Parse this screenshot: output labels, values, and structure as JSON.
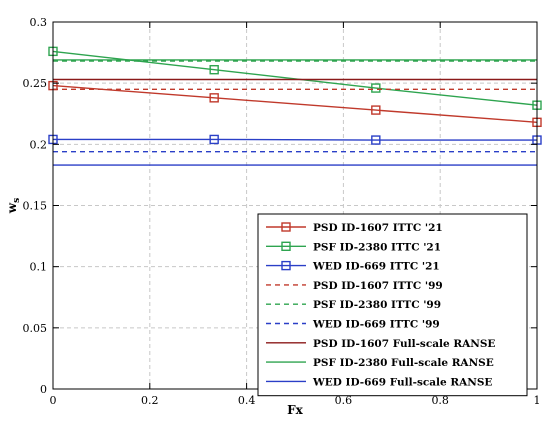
{
  "chart_data": {
    "type": "line",
    "title": "",
    "xlabel": "Fx",
    "ylabel": "w",
    "ylabel_sub": "s",
    "xlim": [
      0,
      1
    ],
    "ylim": [
      0,
      0.3
    ],
    "xticks": [
      "0",
      "0.2",
      "0.4",
      "0.6",
      "0.8",
      "1"
    ],
    "yticks": [
      "0",
      "0.05",
      "0.1",
      "0.15",
      "0.2",
      "0.25",
      "0.3"
    ],
    "grid": true,
    "legend_position": "bottom-right",
    "series": [
      {
        "name": "PSD ID-1607 ITTC '21",
        "color": "#c0392b",
        "dash": "solid",
        "marker": "square",
        "x": [
          0,
          0.333,
          0.667,
          1
        ],
        "y": [
          0.248,
          0.238,
          0.228,
          0.218
        ]
      },
      {
        "name": "PSF ID-2380 ITTC '21",
        "color": "#2ea44f",
        "dash": "solid",
        "marker": "square",
        "x": [
          0,
          0.333,
          0.667,
          1
        ],
        "y": [
          0.276,
          0.261,
          0.246,
          0.232
        ]
      },
      {
        "name": "WED ID-669 ITTC '21",
        "color": "#2a3fc7",
        "dash": "solid",
        "marker": "square",
        "x": [
          0,
          0.333,
          0.667,
          1
        ],
        "y": [
          0.204,
          0.204,
          0.2035,
          0.2035
        ]
      },
      {
        "name": "PSD ID-1607 ITTC '99",
        "color": "#c0392b",
        "dash": "dashed",
        "marker": "none",
        "x": [
          0,
          1
        ],
        "y": [
          0.245,
          0.245
        ]
      },
      {
        "name": "PSF ID-2380 ITTC '99",
        "color": "#2ea44f",
        "dash": "dashed",
        "marker": "none",
        "x": [
          0,
          1
        ],
        "y": [
          0.268,
          0.268
        ]
      },
      {
        "name": "WED ID-669 ITTC '99",
        "color": "#2a3fc7",
        "dash": "dashed",
        "marker": "none",
        "x": [
          0,
          1
        ],
        "y": [
          0.194,
          0.194
        ]
      },
      {
        "name": "PSD ID-1607 Full-scale RANSE",
        "color": "#8b1a1a",
        "dash": "solid",
        "marker": "none",
        "x": [
          0,
          1
        ],
        "y": [
          0.253,
          0.253
        ]
      },
      {
        "name": "PSF ID-2380 Full-scale RANSE",
        "color": "#2ea44f",
        "dash": "solid",
        "marker": "none",
        "x": [
          0,
          1
        ],
        "y": [
          0.269,
          0.269
        ]
      },
      {
        "name": "WED ID-669 Full-scale RANSE",
        "color": "#2a3fc7",
        "dash": "solid",
        "marker": "none",
        "x": [
          0,
          1
        ],
        "y": [
          0.183,
          0.183
        ]
      }
    ]
  }
}
